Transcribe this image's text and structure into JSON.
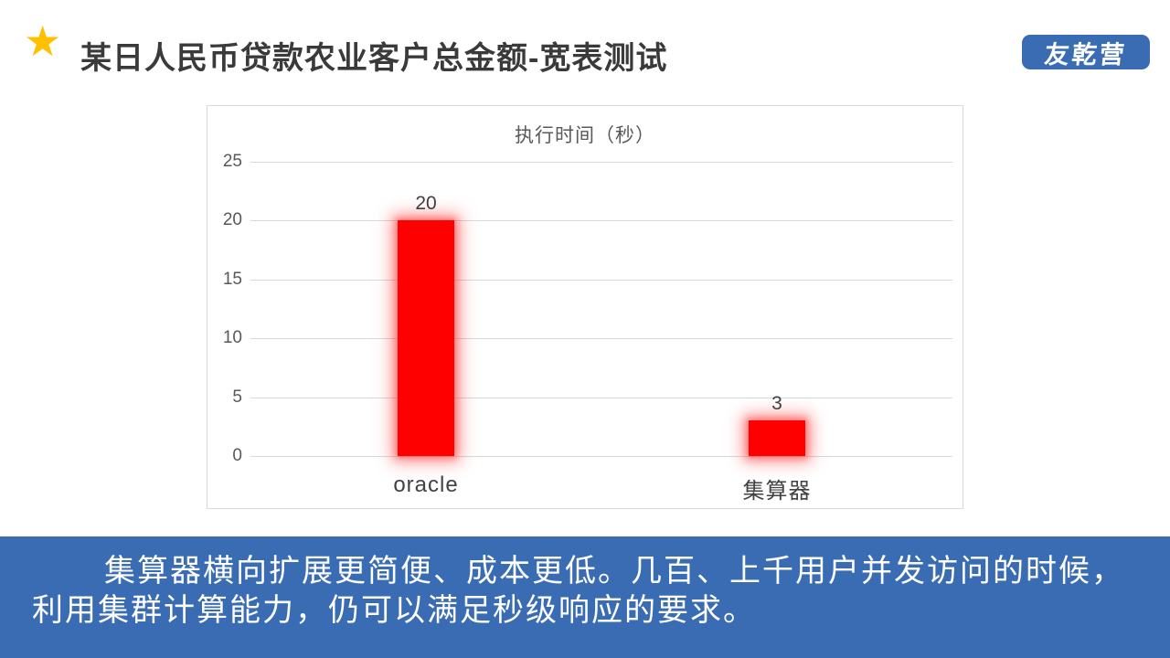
{
  "slide": {
    "star_icon": "★",
    "title": "某日人民币贷款农业客户总金额-宽表测试",
    "badge_label": "友乾营",
    "footer": {
      "line1": "集算器横向扩展更简便、成本更低。几百、上千用户并发访问的时候，",
      "line2": "利用集群计算能力，仍可以满足秒级响应的要求。"
    }
  },
  "colors": {
    "accent_blue": "#3a6cb4",
    "bar_red": "#ff0000",
    "star_gold": "#ffc000",
    "grid_gray": "#d9d9d9",
    "axis_text_gray": "#595959"
  },
  "chart_data": {
    "type": "bar",
    "title": "执行时间（秒）",
    "categories": [
      "oracle",
      "集算器"
    ],
    "values": [
      20,
      3
    ],
    "xlabel": "",
    "ylabel": "",
    "ylim": [
      0,
      25
    ],
    "yticks": [
      0,
      5,
      10,
      15,
      20,
      25
    ],
    "grid": true,
    "legend": false,
    "bar_color": "#ff0000",
    "data_labels": [
      20,
      3
    ]
  }
}
